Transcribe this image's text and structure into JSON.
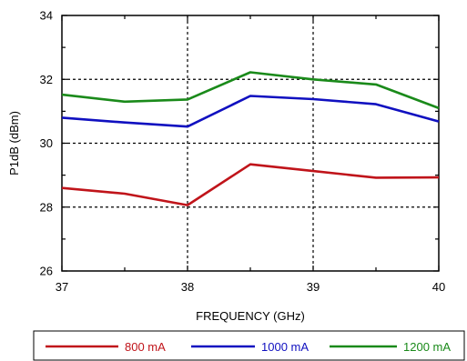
{
  "chart_data": {
    "type": "line",
    "xlabel": "FREQUENCY (GHz)",
    "ylabel": "P1dB (dBm)",
    "xlim": [
      37,
      40
    ],
    "ylim": [
      26,
      34
    ],
    "x_ticks": [
      37,
      38,
      39,
      40
    ],
    "y_ticks": [
      26,
      28,
      30,
      32,
      34
    ],
    "grid": "dashed",
    "legend_position": "bottom",
    "series": [
      {
        "name": "800 mA",
        "color": "#c0141a",
        "x": [
          37,
          37.5,
          38,
          38.5,
          39,
          39.5,
          40
        ],
        "y": [
          28.6,
          28.42,
          28.06,
          29.34,
          29.13,
          28.92,
          28.93
        ]
      },
      {
        "name": "1000 mA",
        "color": "#1010c0",
        "x": [
          37,
          37.5,
          38,
          38.5,
          39,
          39.5,
          40
        ],
        "y": [
          30.8,
          30.65,
          30.52,
          31.48,
          31.38,
          31.22,
          30.68
        ]
      },
      {
        "name": "1200 mA",
        "color": "#1a8a1a",
        "x": [
          37,
          37.5,
          38,
          38.5,
          39,
          39.5,
          40
        ],
        "y": [
          31.52,
          31.3,
          31.37,
          32.22,
          32.0,
          31.84,
          31.1
        ]
      }
    ]
  }
}
